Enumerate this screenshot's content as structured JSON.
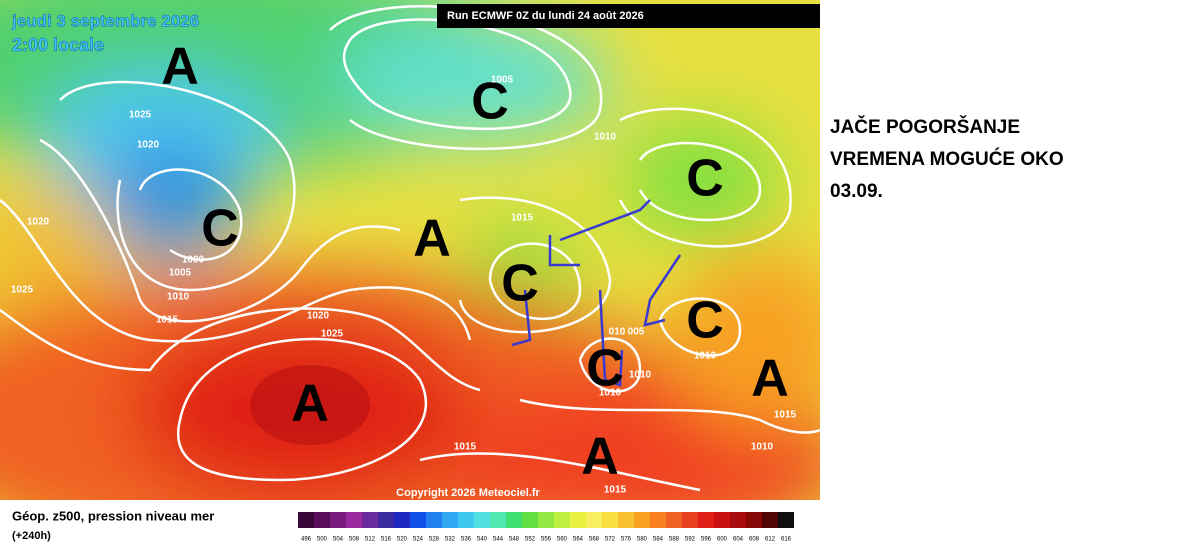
{
  "header": {
    "date": "jeudi 3 septembre 2026",
    "time": "2:00 locale",
    "run": "Run ECMWF 0Z du lundi 24 août 2026",
    "copyright": "Copyright 2026 Meteociel.fr"
  },
  "map": {
    "pressure_centers": [
      "A",
      "C",
      "C",
      "A",
      "C",
      "C",
      "C",
      "C",
      "A",
      "A",
      "A"
    ],
    "isobar_labels": [
      "1005",
      "1025",
      "1020",
      "1000",
      "1005",
      "1010",
      "1015",
      "1020",
      "1025",
      "1015",
      "1010",
      "1020",
      "1025",
      "010",
      "005",
      "1010",
      "1010",
      "1010",
      "1015",
      "1010",
      "1015",
      "1015"
    ]
  },
  "legend": {
    "title": "Géop. z500, pression niveau mer",
    "subtitle": "(+240h)",
    "scale": [
      {
        "value": 496,
        "color": "#3a0838"
      },
      {
        "value": 500,
        "color": "#5a0f5c"
      },
      {
        "value": 504,
        "color": "#7a1a7e"
      },
      {
        "value": 508,
        "color": "#9a2aa0"
      },
      {
        "value": 512,
        "color": "#6a2c9c"
      },
      {
        "value": 516,
        "color": "#3a2ca0"
      },
      {
        "value": 520,
        "color": "#1c28c0"
      },
      {
        "value": 524,
        "color": "#1050e8"
      },
      {
        "value": 528,
        "color": "#2080f0"
      },
      {
        "value": 532,
        "color": "#30a8f4"
      },
      {
        "value": 536,
        "color": "#40c8f0"
      },
      {
        "value": 540,
        "color": "#50e0e0"
      },
      {
        "value": 544,
        "color": "#50e8b0"
      },
      {
        "value": 548,
        "color": "#40e070"
      },
      {
        "value": 552,
        "color": "#60e040"
      },
      {
        "value": 556,
        "color": "#90e840"
      },
      {
        "value": 560,
        "color": "#c0f040"
      },
      {
        "value": 564,
        "color": "#e8f040"
      },
      {
        "value": 568,
        "color": "#f8f060"
      },
      {
        "value": 572,
        "color": "#f8e040"
      },
      {
        "value": 576,
        "color": "#f8c030"
      },
      {
        "value": 580,
        "color": "#f8a020"
      },
      {
        "value": 584,
        "color": "#f88020"
      },
      {
        "value": 588,
        "color": "#f06020"
      },
      {
        "value": 592,
        "color": "#e84020"
      },
      {
        "value": 596,
        "color": "#e02018"
      },
      {
        "value": 600,
        "color": "#c81010"
      },
      {
        "value": 604,
        "color": "#a80c0c"
      },
      {
        "value": 608,
        "color": "#880808"
      },
      {
        "value": 612,
        "color": "#500404"
      },
      {
        "value": 616,
        "color": "#101010"
      }
    ]
  },
  "annotation": [
    "JAČE POGORŠANJE",
    "VREMENA MOGUĆE OKO",
    "03.09."
  ]
}
